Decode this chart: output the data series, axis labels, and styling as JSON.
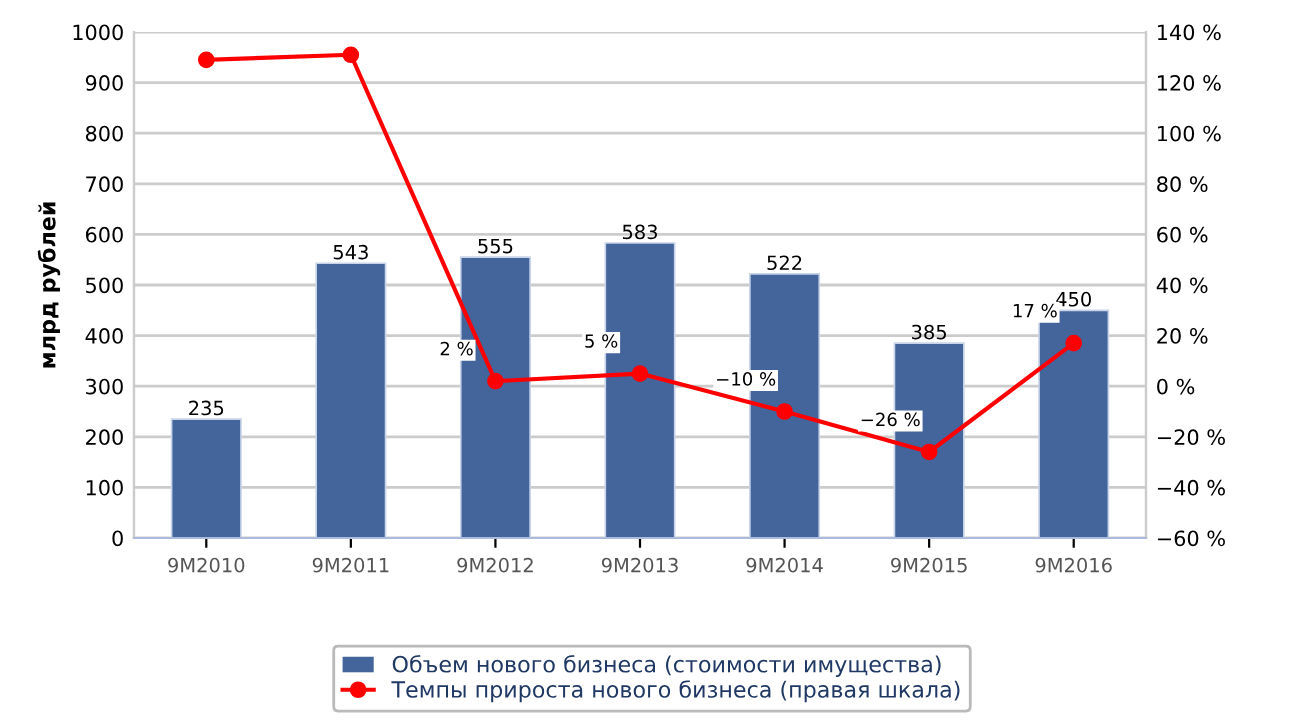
{
  "chart_data": {
    "type": "bar",
    "ylabel": "млрд рублей",
    "categories": [
      "9M2010",
      "9M2011",
      "9M2012",
      "9M2013",
      "9M2014",
      "9M2015",
      "9M2016"
    ],
    "series": [
      {
        "name": "Объем нового бизнеса (стоимости имущества)",
        "color": "#44649c",
        "values": [
          235,
          543,
          555,
          583,
          522,
          385,
          450
        ],
        "value_labels": [
          "235",
          "543",
          "555",
          "583",
          "522",
          "385",
          "450"
        ]
      },
      {
        "name": "Темпы прироста нового бизнеса (правая шкала)",
        "type": "line",
        "axis": "y2",
        "color": "#ff0000",
        "marker": "circle",
        "values": [
          129,
          131,
          2,
          5,
          -10,
          -26,
          17
        ],
        "value_labels": [
          null,
          null,
          "2 %",
          "5 %",
          "−10 %",
          "−26 %",
          "17 %"
        ]
      }
    ],
    "ylim": [
      0,
      1000
    ],
    "yticks": [
      0,
      100,
      200,
      300,
      400,
      500,
      600,
      700,
      800,
      900,
      1000
    ],
    "y2lim": [
      -60,
      140
    ],
    "y2ticks": [
      {
        "value": -60,
        "label": "−60 %"
      },
      {
        "value": -40,
        "label": "−40 %"
      },
      {
        "value": -20,
        "label": "−20 %"
      },
      {
        "value": 0,
        "label": "0 %"
      },
      {
        "value": 20,
        "label": "20 %"
      },
      {
        "value": 40,
        "label": "40 %"
      },
      {
        "value": 60,
        "label": "60 %"
      },
      {
        "value": 80,
        "label": "80 %"
      },
      {
        "value": 100,
        "label": "100 %"
      },
      {
        "value": 120,
        "label": "120 %"
      },
      {
        "value": 140,
        "label": "140 %"
      }
    ],
    "grid": "y",
    "legend": "bottom"
  }
}
